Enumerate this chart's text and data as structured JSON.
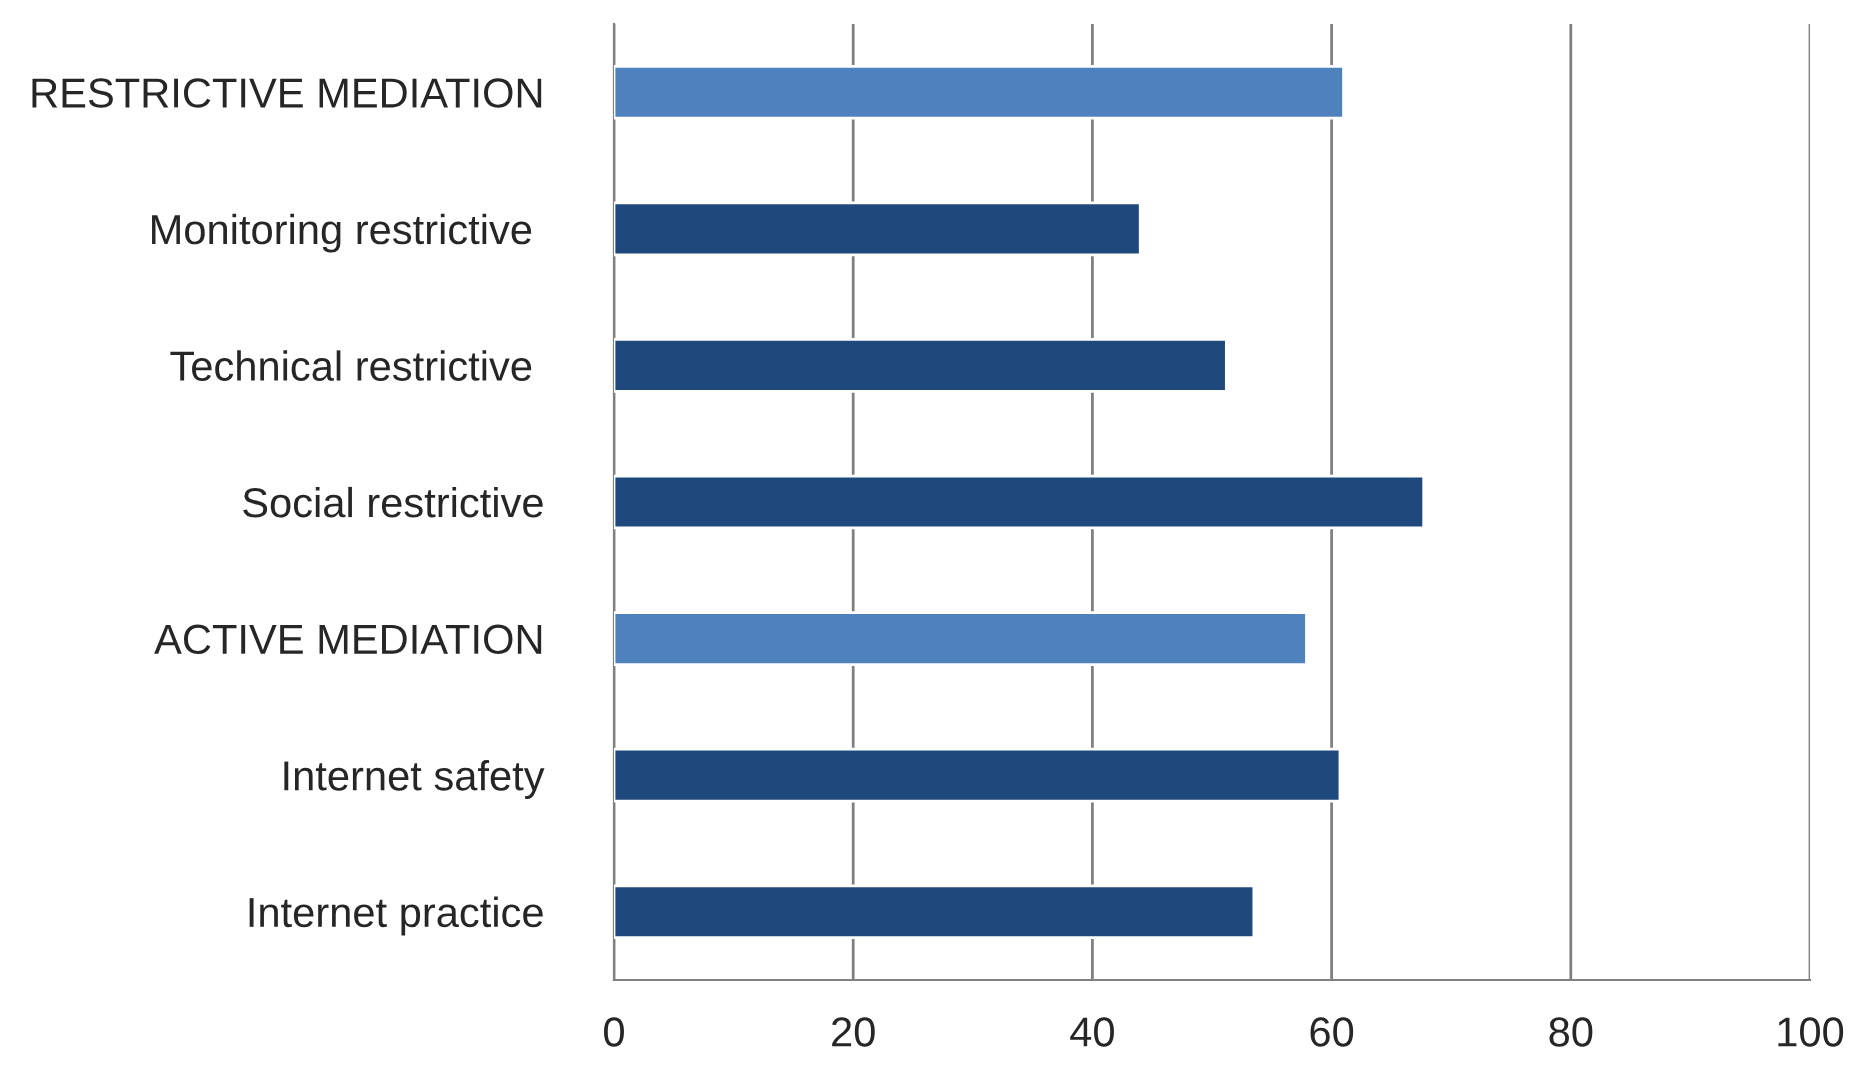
{
  "chart_data": {
    "type": "bar",
    "orientation": "horizontal",
    "categories": [
      "RESTRICTIVE MEDIATION",
      "Monitoring restrictive ",
      "Technical restrictive ",
      "Social restrictive",
      "ACTIVE MEDIATION",
      "Internet safety",
      "Internet practice"
    ],
    "values": [
      61.0,
      44.0,
      51.2,
      67.7,
      57.9,
      60.7,
      53.5
    ],
    "colors": [
      "#4f81bd",
      "#1f497d",
      "#1f497d",
      "#1f497d",
      "#4f81bd",
      "#1f497d",
      "#1f497d"
    ],
    "xlim": [
      0,
      100
    ],
    "xticks": [
      0,
      20,
      40,
      60,
      80,
      100
    ],
    "grid": "x",
    "legend": false
  }
}
